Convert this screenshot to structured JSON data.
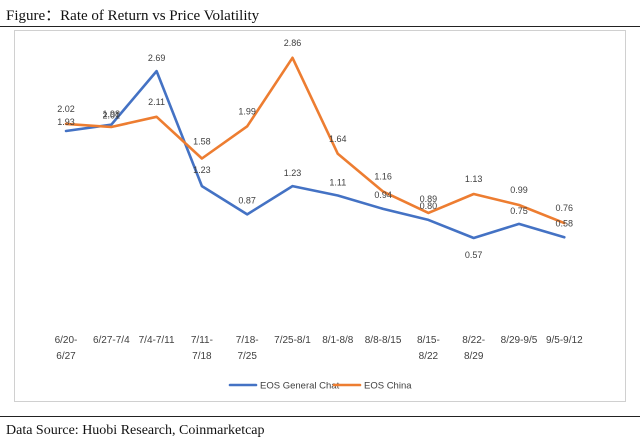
{
  "figure_title": "Figure：Rate of Return vs Price Volatility",
  "source_text": "Data Source: Huobi Research, Coinmarketcap",
  "chart_data": {
    "type": "line",
    "title": "",
    "xlabel": "",
    "ylabel": "",
    "categories": [
      [
        "6/20-",
        "6/27"
      ],
      [
        "6/27-7/4"
      ],
      [
        "7/4-7/11"
      ],
      [
        "7/11-",
        "7/18"
      ],
      [
        "7/18-",
        "7/25"
      ],
      [
        "7/25-8/1"
      ],
      [
        "8/1-8/8"
      ],
      [
        "8/8-8/15"
      ],
      [
        "8/15-",
        "8/22"
      ],
      [
        "8/22-",
        "8/29"
      ],
      [
        "8/29-9/5"
      ],
      [
        "9/5-9/12"
      ]
    ],
    "ylim": [
      -1.5,
      3.2
    ],
    "grid": false,
    "legend_position": "bottom",
    "series": [
      {
        "name": "EOS General Chat",
        "color": "#4472C4",
        "values": [
          1.93,
          2.01,
          2.69,
          1.23,
          0.87,
          1.23,
          1.11,
          0.94,
          0.8,
          0.57,
          0.75,
          0.58
        ],
        "labels": [
          "1.93",
          "2.01",
          "2.69",
          "1.23",
          "0.87",
          "1.23",
          "1.11",
          "0.94",
          "0.80",
          "0.57",
          "0.75",
          "0.58"
        ]
      },
      {
        "name": "EOS China",
        "color": "#ED7D31",
        "values": [
          2.02,
          1.98,
          2.11,
          1.58,
          1.99,
          2.86,
          1.64,
          1.16,
          0.89,
          1.13,
          0.99,
          0.76
        ],
        "labels": [
          "2.02",
          "1.98",
          "2.11",
          "1.58",
          "1.99",
          "2.86",
          "1.64",
          "1.16",
          "0.89",
          "1.13",
          "0.99",
          "0.76"
        ]
      }
    ]
  }
}
